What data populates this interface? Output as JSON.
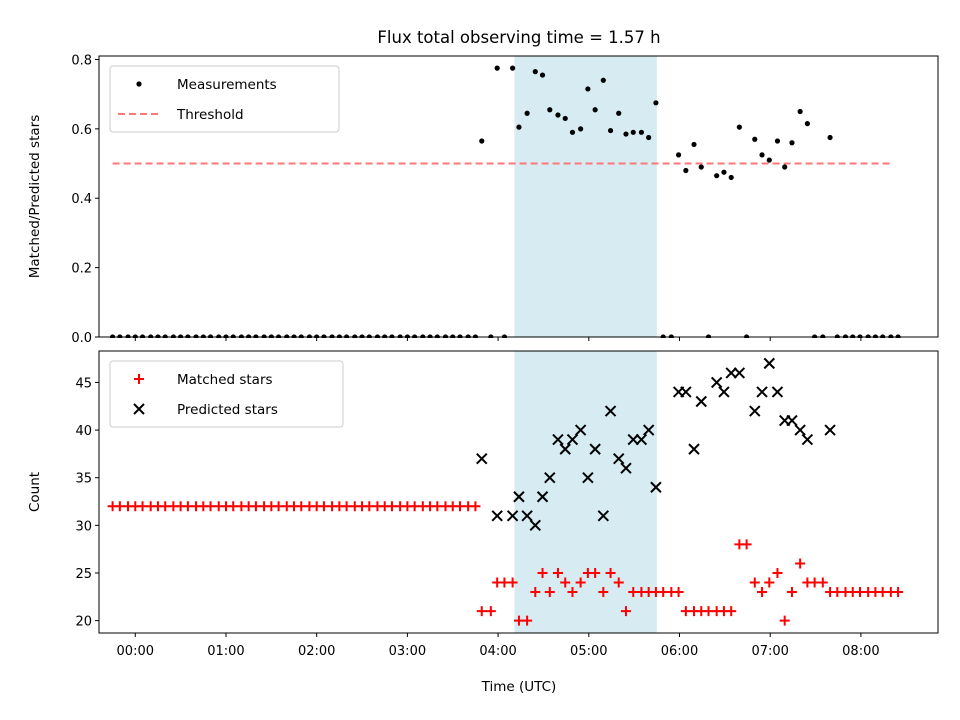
{
  "figure": {
    "title": "Flux total observing time = 1.57 h",
    "xlabel": "Time (UTC)",
    "xticks": [
      {
        "t": 0,
        "label": "00:00"
      },
      {
        "t": 1,
        "label": "01:00"
      },
      {
        "t": 2,
        "label": "02:00"
      },
      {
        "t": 3,
        "label": "03:00"
      },
      {
        "t": 4,
        "label": "04:00"
      },
      {
        "t": 5,
        "label": "05:00"
      },
      {
        "t": 6,
        "label": "06:00"
      },
      {
        "t": 7,
        "label": "07:00"
      },
      {
        "t": 8,
        "label": "08:00"
      }
    ],
    "colors": {
      "measurement": "#000000",
      "threshold": "#ff7777",
      "matched": "#ff0000",
      "predicted": "#000000",
      "span": "#add8e6"
    }
  },
  "chart_data": [
    {
      "type": "scatter",
      "xunit": "hours UTC",
      "ylabel": "Matched/Predicted stars",
      "xlim": [
        -0.4,
        8.85
      ],
      "ylim": [
        0,
        0.81
      ],
      "yticks": [
        "0.0",
        "0.2",
        "0.4",
        "0.6",
        "0.8"
      ],
      "ytick_values": [
        0,
        0.2,
        0.4,
        0.6,
        0.8
      ],
      "grid": false,
      "legend": "upper left",
      "highlight_span": [
        4.18,
        5.75
      ],
      "threshold": {
        "name": "Threshold",
        "value": 0.5,
        "x_range": [
          -0.25,
          8.35
        ],
        "style": "dashed"
      },
      "series": [
        {
          "name": "Measurements",
          "marker": "dot",
          "points": [
            [
              -0.25,
              0
            ],
            [
              -0.17,
              0
            ],
            [
              -0.08,
              0
            ],
            [
              0.0,
              0
            ],
            [
              0.08,
              0
            ],
            [
              0.17,
              0
            ],
            [
              0.25,
              0
            ],
            [
              0.33,
              0
            ],
            [
              0.42,
              0
            ],
            [
              0.5,
              0
            ],
            [
              0.58,
              0
            ],
            [
              0.67,
              0
            ],
            [
              0.75,
              0
            ],
            [
              0.83,
              0
            ],
            [
              0.92,
              0
            ],
            [
              1.0,
              0
            ],
            [
              1.08,
              0
            ],
            [
              1.17,
              0
            ],
            [
              1.25,
              0
            ],
            [
              1.33,
              0
            ],
            [
              1.42,
              0
            ],
            [
              1.5,
              0
            ],
            [
              1.58,
              0
            ],
            [
              1.67,
              0
            ],
            [
              1.75,
              0
            ],
            [
              1.83,
              0
            ],
            [
              1.92,
              0
            ],
            [
              2.0,
              0
            ],
            [
              2.08,
              0
            ],
            [
              2.17,
              0
            ],
            [
              2.25,
              0
            ],
            [
              2.33,
              0
            ],
            [
              2.42,
              0
            ],
            [
              2.5,
              0
            ],
            [
              2.58,
              0
            ],
            [
              2.67,
              0
            ],
            [
              2.75,
              0
            ],
            [
              2.83,
              0
            ],
            [
              2.92,
              0
            ],
            [
              3.0,
              0
            ],
            [
              3.08,
              0
            ],
            [
              3.17,
              0
            ],
            [
              3.25,
              0
            ],
            [
              3.33,
              0
            ],
            [
              3.42,
              0
            ],
            [
              3.5,
              0
            ],
            [
              3.58,
              0
            ],
            [
              3.67,
              0
            ],
            [
              3.75,
              0
            ],
            [
              3.82,
              0.565
            ],
            [
              3.92,
              0
            ],
            [
              3.99,
              0.775
            ],
            [
              4.07,
              0
            ],
            [
              4.16,
              0.775
            ],
            [
              4.23,
              0.605
            ],
            [
              4.32,
              0.645
            ],
            [
              4.41,
              0.765
            ],
            [
              4.49,
              0.755
            ],
            [
              4.57,
              0.655
            ],
            [
              4.66,
              0.64
            ],
            [
              4.74,
              0.63
            ],
            [
              4.82,
              0.59
            ],
            [
              4.91,
              0.6
            ],
            [
              4.99,
              0.715
            ],
            [
              5.07,
              0.655
            ],
            [
              5.16,
              0.74
            ],
            [
              5.24,
              0.595
            ],
            [
              5.33,
              0.645
            ],
            [
              5.41,
              0.585
            ],
            [
              5.49,
              0.59
            ],
            [
              5.58,
              0.59
            ],
            [
              5.66,
              0.575
            ],
            [
              5.74,
              0.675
            ],
            [
              5.82,
              0
            ],
            [
              5.91,
              0
            ],
            [
              5.99,
              0.525
            ],
            [
              6.07,
              0.48
            ],
            [
              6.16,
              0.555
            ],
            [
              6.24,
              0.49
            ],
            [
              6.32,
              0
            ],
            [
              6.41,
              0.465
            ],
            [
              6.49,
              0.475
            ],
            [
              6.57,
              0.46
            ],
            [
              6.66,
              0.605
            ],
            [
              6.74,
              0
            ],
            [
              6.83,
              0.57
            ],
            [
              6.91,
              0.525
            ],
            [
              6.99,
              0.51
            ],
            [
              7.08,
              0.565
            ],
            [
              7.16,
              0.49
            ],
            [
              7.24,
              0.56
            ],
            [
              7.33,
              0.65
            ],
            [
              7.41,
              0.615
            ],
            [
              7.49,
              0
            ],
            [
              7.58,
              0
            ],
            [
              7.66,
              0.575
            ],
            [
              7.74,
              0
            ],
            [
              7.83,
              0
            ],
            [
              7.91,
              0
            ],
            [
              7.99,
              0
            ],
            [
              8.08,
              0
            ],
            [
              8.16,
              0
            ],
            [
              8.24,
              0
            ],
            [
              8.33,
              0
            ],
            [
              8.41,
              0
            ]
          ]
        }
      ]
    },
    {
      "type": "scatter",
      "xunit": "hours UTC",
      "ylabel": "Count",
      "xlim": [
        -0.4,
        8.85
      ],
      "ylim": [
        18.7,
        48.3
      ],
      "yticks": [
        "20",
        "25",
        "30",
        "35",
        "40",
        "45"
      ],
      "ytick_values": [
        20,
        25,
        30,
        35,
        40,
        45
      ],
      "grid": false,
      "legend": "upper left",
      "highlight_span": [
        4.18,
        5.75
      ],
      "series": [
        {
          "name": "Matched stars",
          "marker": "plus",
          "points": [
            [
              -0.25,
              32
            ],
            [
              -0.17,
              32
            ],
            [
              -0.08,
              32
            ],
            [
              0.0,
              32
            ],
            [
              0.08,
              32
            ],
            [
              0.17,
              32
            ],
            [
              0.25,
              32
            ],
            [
              0.33,
              32
            ],
            [
              0.42,
              32
            ],
            [
              0.5,
              32
            ],
            [
              0.58,
              32
            ],
            [
              0.67,
              32
            ],
            [
              0.75,
              32
            ],
            [
              0.83,
              32
            ],
            [
              0.92,
              32
            ],
            [
              1.0,
              32
            ],
            [
              1.08,
              32
            ],
            [
              1.17,
              32
            ],
            [
              1.25,
              32
            ],
            [
              1.33,
              32
            ],
            [
              1.42,
              32
            ],
            [
              1.5,
              32
            ],
            [
              1.58,
              32
            ],
            [
              1.67,
              32
            ],
            [
              1.75,
              32
            ],
            [
              1.83,
              32
            ],
            [
              1.92,
              32
            ],
            [
              2.0,
              32
            ],
            [
              2.08,
              32
            ],
            [
              2.17,
              32
            ],
            [
              2.25,
              32
            ],
            [
              2.33,
              32
            ],
            [
              2.42,
              32
            ],
            [
              2.5,
              32
            ],
            [
              2.58,
              32
            ],
            [
              2.67,
              32
            ],
            [
              2.75,
              32
            ],
            [
              2.83,
              32
            ],
            [
              2.92,
              32
            ],
            [
              3.0,
              32
            ],
            [
              3.08,
              32
            ],
            [
              3.17,
              32
            ],
            [
              3.25,
              32
            ],
            [
              3.33,
              32
            ],
            [
              3.42,
              32
            ],
            [
              3.5,
              32
            ],
            [
              3.58,
              32
            ],
            [
              3.67,
              32
            ],
            [
              3.75,
              32
            ],
            [
              3.82,
              21
            ],
            [
              3.92,
              21
            ],
            [
              3.99,
              24
            ],
            [
              4.07,
              24
            ],
            [
              4.16,
              24
            ],
            [
              4.23,
              20
            ],
            [
              4.32,
              20
            ],
            [
              4.41,
              23
            ],
            [
              4.49,
              25
            ],
            [
              4.57,
              23
            ],
            [
              4.66,
              25
            ],
            [
              4.74,
              24
            ],
            [
              4.82,
              23
            ],
            [
              4.91,
              24
            ],
            [
              4.99,
              25
            ],
            [
              5.07,
              25
            ],
            [
              5.16,
              23
            ],
            [
              5.24,
              25
            ],
            [
              5.33,
              24
            ],
            [
              5.41,
              21
            ],
            [
              5.49,
              23
            ],
            [
              5.58,
              23
            ],
            [
              5.66,
              23
            ],
            [
              5.74,
              23
            ],
            [
              5.82,
              23
            ],
            [
              5.91,
              23
            ],
            [
              5.99,
              23
            ],
            [
              6.07,
              21
            ],
            [
              6.16,
              21
            ],
            [
              6.24,
              21
            ],
            [
              6.32,
              21
            ],
            [
              6.41,
              21
            ],
            [
              6.49,
              21
            ],
            [
              6.57,
              21
            ],
            [
              6.66,
              28
            ],
            [
              6.74,
              28
            ],
            [
              6.83,
              24
            ],
            [
              6.91,
              23
            ],
            [
              6.99,
              24
            ],
            [
              7.08,
              25
            ],
            [
              7.16,
              20
            ],
            [
              7.24,
              23
            ],
            [
              7.33,
              26
            ],
            [
              7.41,
              24
            ],
            [
              7.49,
              24
            ],
            [
              7.58,
              24
            ],
            [
              7.66,
              23
            ],
            [
              7.74,
              23
            ],
            [
              7.83,
              23
            ],
            [
              7.91,
              23
            ],
            [
              7.99,
              23
            ],
            [
              8.08,
              23
            ],
            [
              8.16,
              23
            ],
            [
              8.24,
              23
            ],
            [
              8.33,
              23
            ],
            [
              8.41,
              23
            ]
          ]
        },
        {
          "name": "Predicted stars",
          "marker": "x",
          "points": [
            [
              3.82,
              37
            ],
            [
              3.99,
              31
            ],
            [
              4.16,
              31
            ],
            [
              4.23,
              33
            ],
            [
              4.32,
              31
            ],
            [
              4.41,
              30
            ],
            [
              4.49,
              33
            ],
            [
              4.57,
              35
            ],
            [
              4.66,
              39
            ],
            [
              4.74,
              38
            ],
            [
              4.82,
              39
            ],
            [
              4.91,
              40
            ],
            [
              4.99,
              35
            ],
            [
              5.07,
              38
            ],
            [
              5.16,
              31
            ],
            [
              5.24,
              42
            ],
            [
              5.33,
              37
            ],
            [
              5.41,
              36
            ],
            [
              5.49,
              39
            ],
            [
              5.58,
              39
            ],
            [
              5.66,
              40
            ],
            [
              5.74,
              34
            ],
            [
              5.99,
              44
            ],
            [
              6.07,
              44
            ],
            [
              6.16,
              38
            ],
            [
              6.24,
              43
            ],
            [
              6.41,
              45
            ],
            [
              6.49,
              44
            ],
            [
              6.57,
              46
            ],
            [
              6.66,
              46
            ],
            [
              6.83,
              42
            ],
            [
              6.91,
              44
            ],
            [
              6.99,
              47
            ],
            [
              7.08,
              44
            ],
            [
              7.16,
              41
            ],
            [
              7.24,
              41
            ],
            [
              7.33,
              40
            ],
            [
              7.41,
              39
            ],
            [
              7.66,
              40
            ]
          ]
        }
      ]
    }
  ]
}
